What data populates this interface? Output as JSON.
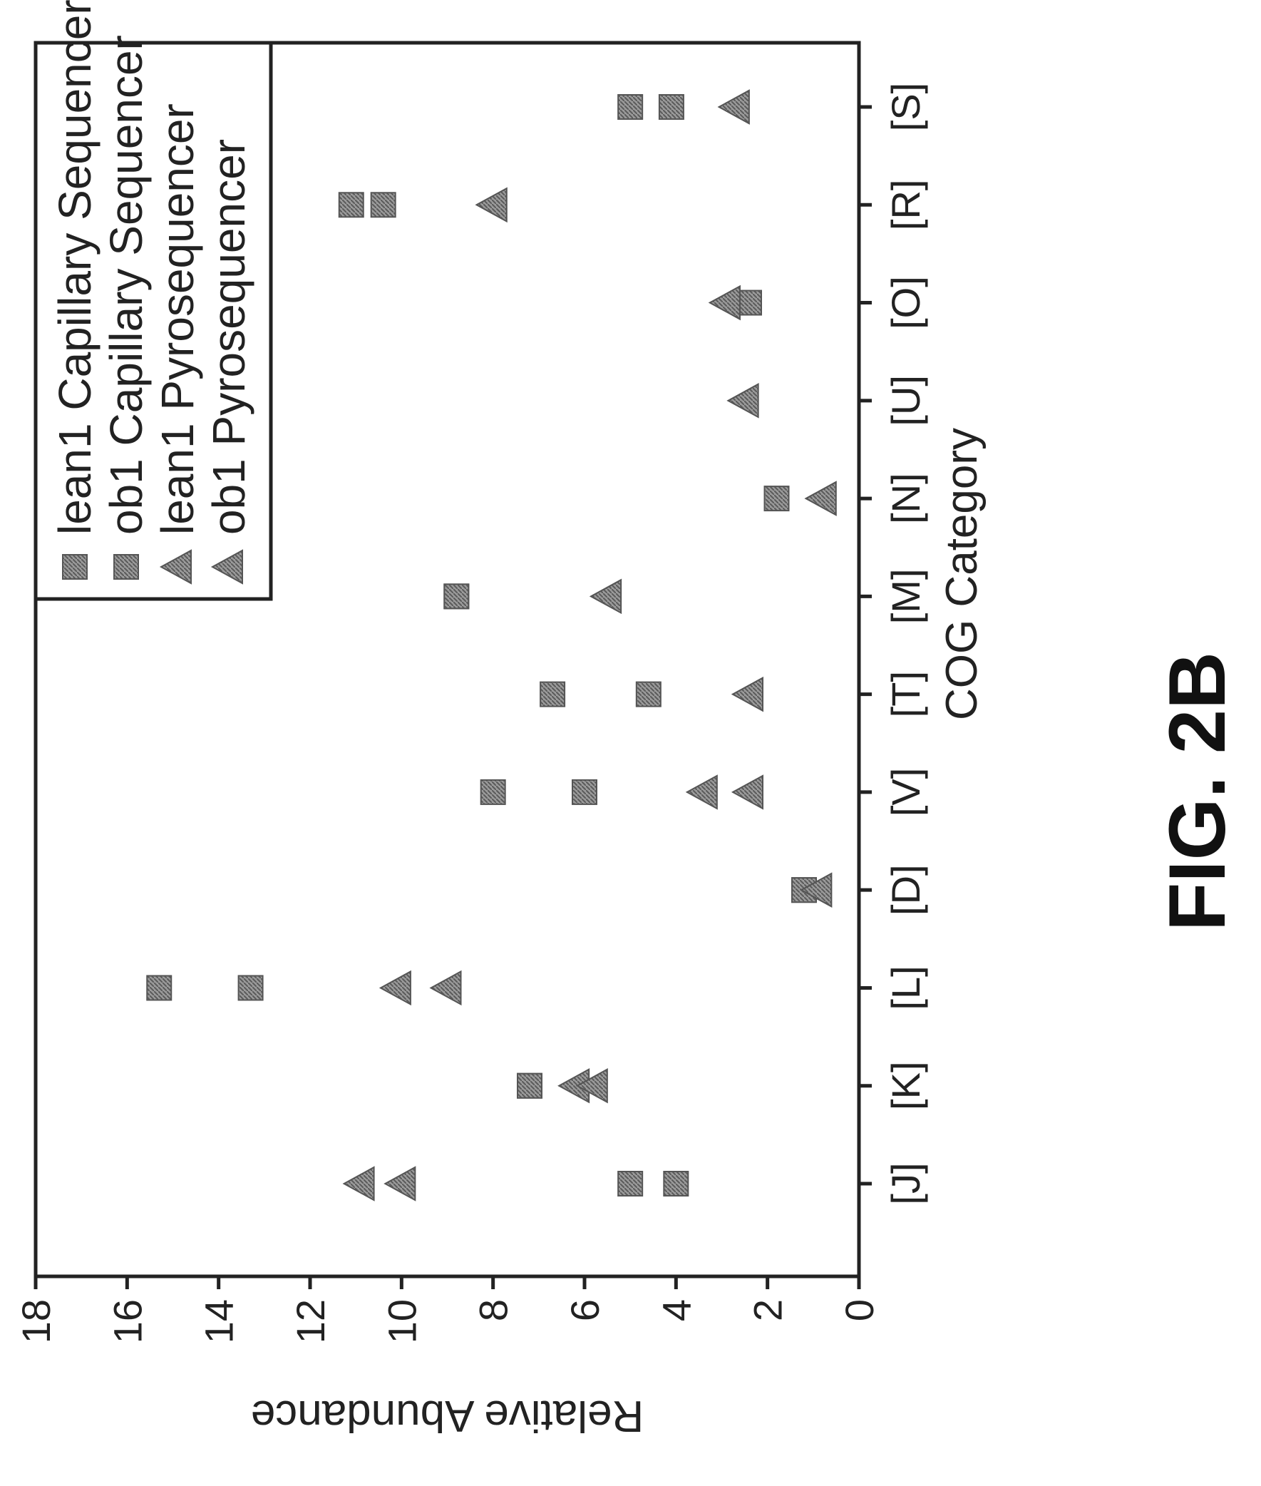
{
  "chart_data": {
    "type": "scatter",
    "title": "",
    "xlabel": "COG Category",
    "ylabel": "Relative Abundance",
    "categories": [
      "[J]",
      "[K]",
      "[L]",
      "[D]",
      "[V]",
      "[T]",
      "[M]",
      "[N]",
      "[U]",
      "[O]",
      "[R]",
      "[S]"
    ],
    "ylim": [
      0,
      18
    ],
    "yticks": [
      0,
      2,
      4,
      6,
      8,
      10,
      12,
      14,
      16,
      18
    ],
    "grid": false,
    "legend_position": "top-right",
    "series": [
      {
        "name": "lean1 Capillary Sequencer",
        "marker": "square",
        "values": [
          5.0,
          7.2,
          15.3,
          1.2,
          8.0,
          6.7,
          8.8,
          null,
          null,
          null,
          11.1,
          5.0
        ]
      },
      {
        "name": "ob1 Capillary Sequencer",
        "marker": "square",
        "values": [
          4.0,
          7.2,
          13.3,
          1.2,
          6.0,
          4.6,
          8.8,
          1.8,
          null,
          2.4,
          10.4,
          4.1
        ]
      },
      {
        "name": "lean1 Pyrosequencer",
        "marker": "triangle",
        "values": [
          10.0,
          6.2,
          10.1,
          0.9,
          3.4,
          2.4,
          5.5,
          0.8,
          2.5,
          2.9,
          8.0,
          2.7
        ]
      },
      {
        "name": "ob1 Pyrosequencer",
        "marker": "triangle",
        "values": [
          10.9,
          5.8,
          9.0,
          0.9,
          2.4,
          2.4,
          5.5,
          0.8,
          2.5,
          2.9,
          8.0,
          2.7
        ]
      }
    ],
    "colors": {
      "marker": "#7a7a7a",
      "axis": "#222222",
      "text": "#222222"
    }
  },
  "figure_label": "FIG. 2B"
}
